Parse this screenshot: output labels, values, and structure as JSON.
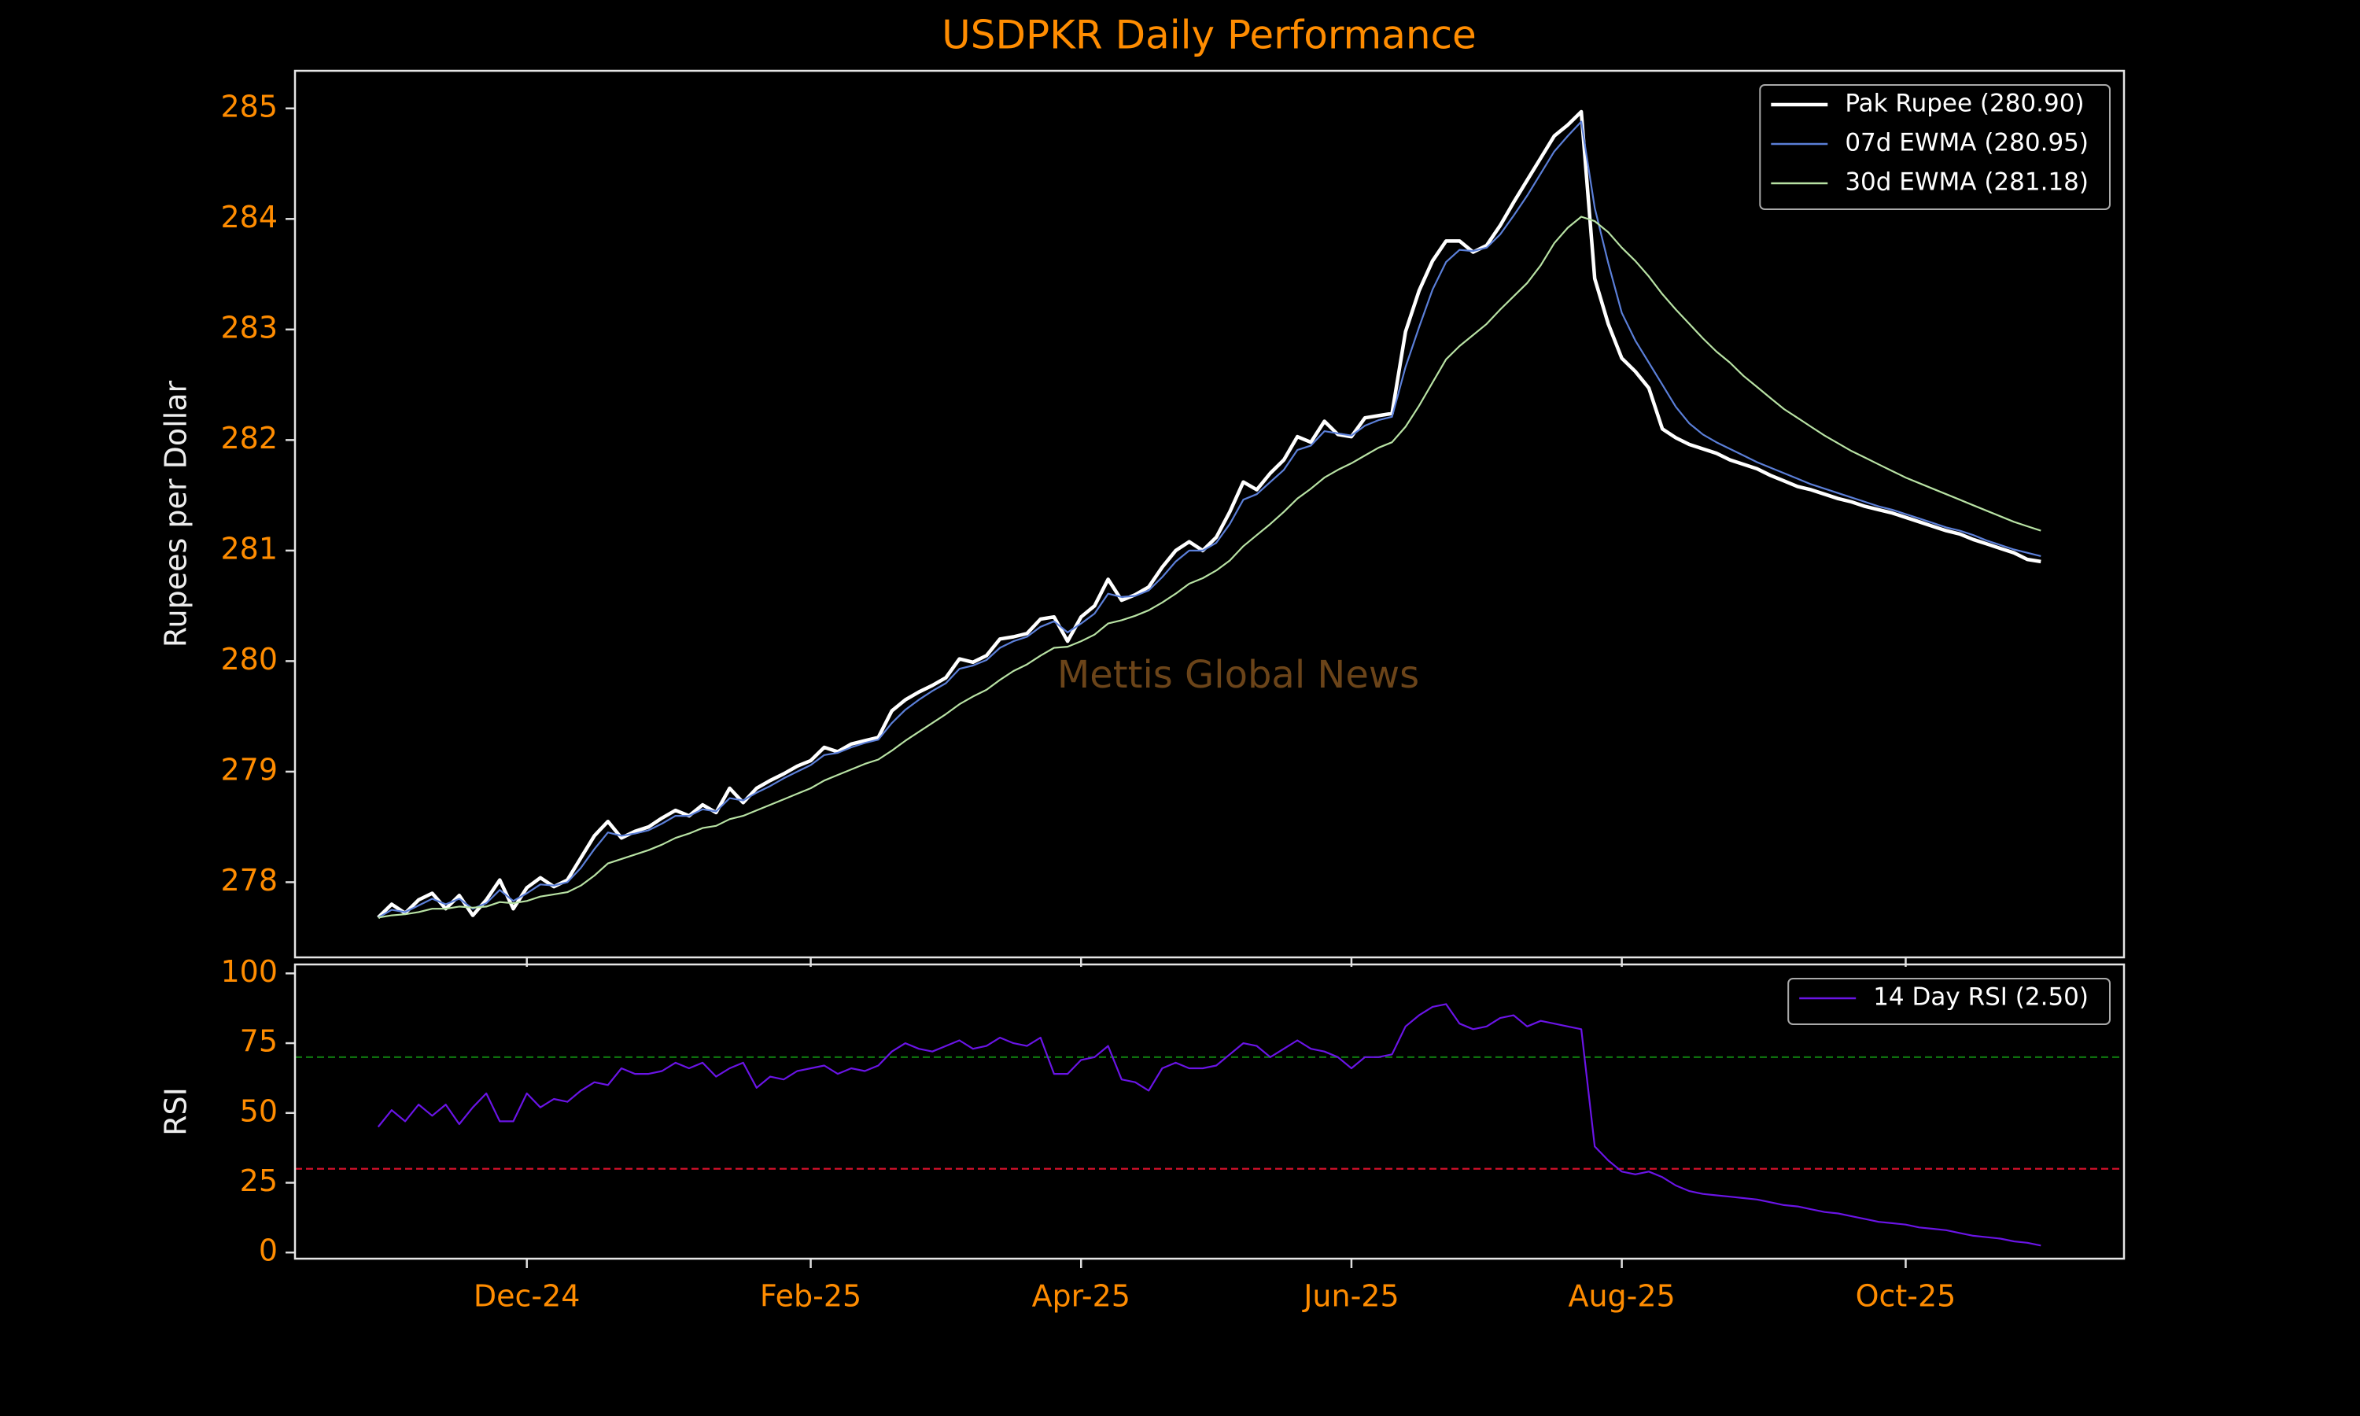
{
  "chart_data": [
    {
      "type": "line",
      "title": "USDPKR Daily Performance",
      "y_label": "Rupees per Dollar",
      "watermark": "Mettis Global News",
      "legend": "upper right",
      "ylim": [
        277.32,
        285.34
      ],
      "yticks": [
        278,
        279,
        280,
        281,
        282,
        283,
        284,
        285
      ],
      "series": [
        {
          "name": "Pak Rupee (280.90)",
          "color": "#ffffff",
          "values": [
            277.68,
            277.8,
            277.72,
            277.84,
            277.9,
            277.76,
            277.88,
            277.7,
            277.84,
            278.02,
            277.76,
            277.95,
            278.04,
            277.96,
            278.02,
            278.22,
            278.42,
            278.55,
            278.4,
            278.46,
            278.5,
            278.58,
            278.65,
            278.6,
            278.7,
            278.63,
            278.85,
            278.72,
            278.85,
            278.92,
            278.98,
            279.05,
            279.1,
            279.22,
            279.18,
            279.25,
            279.28,
            279.31,
            279.55,
            279.65,
            279.72,
            279.78,
            279.85,
            280.02,
            279.99,
            280.05,
            280.2,
            280.22,
            280.25,
            280.38,
            280.4,
            280.18,
            280.4,
            280.5,
            280.74,
            280.55,
            280.6,
            280.67,
            280.85,
            281.0,
            281.08,
            281.0,
            281.12,
            281.35,
            281.62,
            281.55,
            281.7,
            281.82,
            282.03,
            281.98,
            282.17,
            282.05,
            282.03,
            282.2,
            282.22,
            282.24,
            282.98,
            283.35,
            283.62,
            283.8,
            283.8,
            283.7,
            283.76,
            283.94,
            284.15,
            284.35,
            284.55,
            284.75,
            284.85,
            284.97,
            283.46,
            283.05,
            282.74,
            282.62,
            282.47,
            282.1,
            282.02,
            281.96,
            281.92,
            281.88,
            281.82,
            281.78,
            281.74,
            281.68,
            281.63,
            281.58,
            281.55,
            281.51,
            281.47,
            281.44,
            281.4,
            281.37,
            281.34,
            281.3,
            281.26,
            281.22,
            281.18,
            281.15,
            281.1,
            281.06,
            281.02,
            280.98,
            280.92,
            280.9
          ]
        },
        {
          "name": "07d EWMA (280.95)",
          "color": "#5b7fd8",
          "values": [
            277.68,
            277.75,
            277.73,
            277.79,
            277.85,
            277.8,
            277.85,
            277.76,
            277.81,
            277.93,
            277.83,
            277.9,
            277.98,
            277.97,
            278.0,
            278.13,
            278.3,
            278.45,
            278.42,
            278.44,
            278.47,
            278.53,
            278.6,
            278.6,
            278.66,
            278.64,
            278.76,
            278.74,
            278.81,
            278.87,
            278.94,
            279.0,
            279.06,
            279.15,
            279.17,
            279.22,
            279.26,
            279.29,
            279.44,
            279.56,
            279.65,
            279.73,
            279.8,
            279.93,
            279.96,
            280.01,
            280.12,
            280.18,
            280.22,
            280.31,
            280.36,
            280.26,
            280.34,
            280.43,
            280.61,
            280.58,
            280.59,
            280.64,
            280.76,
            280.9,
            281.0,
            281.0,
            281.07,
            281.24,
            281.46,
            281.51,
            281.62,
            281.73,
            281.91,
            281.95,
            282.08,
            282.06,
            282.04,
            282.13,
            282.18,
            282.21,
            282.66,
            283.02,
            283.36,
            283.61,
            283.72,
            283.71,
            283.74,
            283.86,
            284.03,
            284.21,
            284.41,
            284.61,
            284.75,
            284.88,
            284.1,
            283.6,
            283.15,
            282.9,
            282.7,
            282.5,
            282.3,
            282.15,
            282.05,
            281.98,
            281.92,
            281.86,
            281.8,
            281.75,
            281.7,
            281.65,
            281.6,
            281.56,
            281.52,
            281.48,
            281.44,
            281.4,
            281.37,
            281.33,
            281.29,
            281.25,
            281.21,
            281.18,
            281.14,
            281.09,
            281.05,
            281.01,
            280.98,
            280.95
          ]
        },
        {
          "name": "30d EWMA (281.18)",
          "color": "#b8e2a4",
          "values": [
            277.68,
            277.7,
            277.71,
            277.73,
            277.76,
            277.76,
            277.78,
            277.77,
            277.78,
            277.82,
            277.81,
            277.83,
            277.87,
            277.89,
            277.91,
            277.97,
            278.06,
            278.17,
            278.21,
            278.25,
            278.29,
            278.34,
            278.4,
            278.44,
            278.49,
            278.51,
            278.57,
            278.6,
            278.65,
            278.7,
            278.75,
            278.8,
            278.85,
            278.92,
            278.97,
            279.02,
            279.07,
            279.11,
            279.19,
            279.28,
            279.36,
            279.44,
            279.52,
            279.61,
            279.68,
            279.74,
            279.83,
            279.91,
            279.97,
            280.05,
            280.12,
            280.13,
            280.18,
            280.24,
            280.34,
            280.37,
            280.41,
            280.46,
            280.53,
            280.61,
            280.7,
            280.75,
            280.82,
            280.91,
            281.04,
            281.14,
            281.24,
            281.35,
            281.47,
            281.56,
            281.66,
            281.73,
            281.79,
            281.86,
            281.93,
            281.98,
            282.12,
            282.31,
            282.52,
            282.73,
            282.85,
            282.95,
            283.05,
            283.18,
            283.3,
            283.42,
            283.58,
            283.78,
            283.92,
            284.02,
            283.98,
            283.88,
            283.74,
            283.62,
            283.48,
            283.32,
            283.18,
            283.05,
            282.92,
            282.8,
            282.7,
            282.58,
            282.48,
            282.38,
            282.28,
            282.2,
            282.12,
            282.04,
            281.97,
            281.9,
            281.84,
            281.78,
            281.72,
            281.66,
            281.61,
            281.56,
            281.51,
            281.46,
            281.41,
            281.36,
            281.31,
            281.26,
            281.22,
            281.18
          ]
        }
      ]
    },
    {
      "type": "line",
      "y_label": "RSI",
      "legend": "upper right",
      "categories": [
        null,
        null,
        null,
        null,
        null,
        null,
        null,
        null,
        null,
        null,
        null,
        "Dec-24",
        null,
        null,
        null,
        null,
        null,
        null,
        null,
        null,
        null,
        null,
        null,
        null,
        null,
        null,
        null,
        null,
        null,
        null,
        null,
        null,
        "Feb-25",
        null,
        null,
        null,
        null,
        null,
        null,
        null,
        null,
        null,
        null,
        null,
        null,
        null,
        null,
        null,
        null,
        null,
        null,
        null,
        "Apr-25",
        null,
        null,
        null,
        null,
        null,
        null,
        null,
        null,
        null,
        null,
        null,
        null,
        null,
        null,
        null,
        null,
        null,
        null,
        null,
        "Jun-25",
        null,
        null,
        null,
        null,
        null,
        null,
        null,
        null,
        null,
        null,
        null,
        null,
        null,
        null,
        null,
        null,
        null,
        null,
        null,
        "Aug-25",
        null,
        null,
        null,
        null,
        null,
        null,
        null,
        null,
        null,
        null,
        null,
        null,
        null,
        null,
        null,
        null,
        null,
        null,
        null,
        null,
        "Oct-25",
        null,
        null,
        null,
        null,
        null,
        null,
        null,
        null,
        null,
        null
      ],
      "ylim": [
        -2.2,
        103.2
      ],
      "yticks": [
        0,
        25,
        50,
        75,
        100
      ],
      "hlines": [
        {
          "value": 70,
          "color": "#0f7a0f"
        },
        {
          "value": 30,
          "color": "#d0102a"
        }
      ],
      "series": [
        {
          "name": "14 Day RSI (2.50)",
          "color": "#6a14e6",
          "values": [
            45,
            51,
            47,
            53,
            49,
            53,
            46,
            52,
            57,
            47,
            47,
            57,
            52,
            55,
            54,
            58,
            61,
            60,
            66,
            64,
            64,
            65,
            68,
            66,
            68,
            63,
            66,
            68,
            59,
            63,
            62,
            65,
            66,
            67,
            64,
            66,
            65,
            67,
            72,
            75,
            73,
            72,
            74,
            76,
            73,
            74,
            77,
            75,
            74,
            77,
            64,
            64,
            69,
            70,
            74,
            62,
            61,
            58,
            66,
            68,
            66,
            66,
            67,
            71,
            75,
            74,
            70,
            73,
            76,
            73,
            72,
            70,
            66,
            70,
            70,
            71,
            81,
            85,
            88,
            89,
            82,
            80,
            81,
            84,
            85,
            81,
            83,
            82,
            81,
            80,
            38,
            33,
            29,
            28,
            29,
            27,
            24,
            22,
            21,
            20.5,
            20,
            19.5,
            19,
            18,
            17,
            16.5,
            15.5,
            14.5,
            14,
            13,
            12,
            11,
            10.5,
            10,
            9,
            8.5,
            8,
            7,
            6,
            5.5,
            5,
            4,
            3.5,
            2.5
          ]
        }
      ]
    }
  ]
}
